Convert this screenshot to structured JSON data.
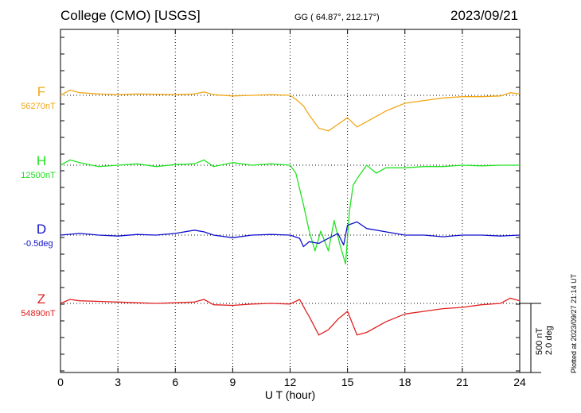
{
  "header": {
    "station": "College (CMO)  [USGS]",
    "coords": "GG ( 64.87°, 212.17°)",
    "date": "2023/09/21"
  },
  "footer": {
    "plotted": "Plotted at 2023/09/27 21:14 UT"
  },
  "chart_data": {
    "type": "line",
    "xlabel": "U T (hour)",
    "xlim": [
      0,
      24
    ],
    "x_ticks": [
      0,
      3,
      6,
      9,
      12,
      15,
      18,
      21,
      24
    ],
    "grid": true,
    "scale_bar": {
      "line1": "500 nT",
      "line2": "2.0 deg"
    },
    "series": [
      {
        "name": "F",
        "baseline_label": "56270nT",
        "color": "#f0a818",
        "unit": "nT",
        "points": [
          [
            0,
            0
          ],
          [
            0.5,
            40
          ],
          [
            1,
            20
          ],
          [
            2,
            10
          ],
          [
            3,
            5
          ],
          [
            4,
            10
          ],
          [
            5,
            8
          ],
          [
            6,
            5
          ],
          [
            7,
            10
          ],
          [
            7.5,
            25
          ],
          [
            8,
            5
          ],
          [
            9,
            -5
          ],
          [
            10,
            0
          ],
          [
            11,
            5
          ],
          [
            12,
            0
          ],
          [
            12.3,
            -30
          ],
          [
            12.7,
            -80
          ],
          [
            13,
            -150
          ],
          [
            13.5,
            -250
          ],
          [
            14,
            -270
          ],
          [
            14.5,
            -220
          ],
          [
            15,
            -170
          ],
          [
            15.5,
            -240
          ],
          [
            16,
            -200
          ],
          [
            16.5,
            -160
          ],
          [
            17,
            -120
          ],
          [
            17.5,
            -90
          ],
          [
            18,
            -60
          ],
          [
            19,
            -40
          ],
          [
            20,
            -20
          ],
          [
            21,
            -10
          ],
          [
            22,
            -10
          ],
          [
            23,
            -5
          ],
          [
            23.5,
            20
          ],
          [
            24,
            10
          ]
        ]
      },
      {
        "name": "H",
        "baseline_label": "12500nT",
        "color": "#22e222",
        "unit": "nT",
        "points": [
          [
            0,
            0
          ],
          [
            0.5,
            40
          ],
          [
            1,
            20
          ],
          [
            2,
            -10
          ],
          [
            3,
            0
          ],
          [
            4,
            10
          ],
          [
            5,
            -10
          ],
          [
            6,
            5
          ],
          [
            7,
            10
          ],
          [
            7.5,
            40
          ],
          [
            8,
            -10
          ],
          [
            9,
            20
          ],
          [
            10,
            0
          ],
          [
            11,
            10
          ],
          [
            12,
            0
          ],
          [
            12.3,
            -60
          ],
          [
            12.7,
            -300
          ],
          [
            13,
            -500
          ],
          [
            13.3,
            -650
          ],
          [
            13.6,
            -500
          ],
          [
            14,
            -650
          ],
          [
            14.3,
            -420
          ],
          [
            14.6,
            -600
          ],
          [
            14.9,
            -750
          ],
          [
            15.1,
            -350
          ],
          [
            15.3,
            -150
          ],
          [
            15.6,
            -80
          ],
          [
            16,
            0
          ],
          [
            16.5,
            -60
          ],
          [
            17,
            -20
          ],
          [
            18,
            -20
          ],
          [
            19,
            -10
          ],
          [
            20,
            -10
          ],
          [
            21,
            0
          ],
          [
            22,
            -5
          ],
          [
            23,
            0
          ],
          [
            24,
            0
          ]
        ]
      },
      {
        "name": "D",
        "baseline_label": "-0.5deg",
        "color": "#1010cc",
        "unit": "deg",
        "points": [
          [
            0,
            0
          ],
          [
            1,
            0.05
          ],
          [
            2,
            0
          ],
          [
            3,
            -0.03
          ],
          [
            4,
            0.02
          ],
          [
            5,
            0
          ],
          [
            6,
            0.05
          ],
          [
            7,
            0.15
          ],
          [
            7.5,
            0.1
          ],
          [
            8,
            0
          ],
          [
            9,
            -0.08
          ],
          [
            10,
            0
          ],
          [
            11,
            0.02
          ],
          [
            12,
            0
          ],
          [
            12.5,
            -0.1
          ],
          [
            12.7,
            -0.35
          ],
          [
            13,
            -0.2
          ],
          [
            13.5,
            -0.25
          ],
          [
            14,
            -0.1
          ],
          [
            14.5,
            0.05
          ],
          [
            14.8,
            -0.3
          ],
          [
            15,
            0.3
          ],
          [
            15.5,
            0.4
          ],
          [
            16,
            0.2
          ],
          [
            17,
            0.1
          ],
          [
            18,
            0
          ],
          [
            19,
            0
          ],
          [
            20,
            -0.05
          ],
          [
            21,
            0
          ],
          [
            22,
            0
          ],
          [
            23,
            -0.03
          ],
          [
            24,
            0
          ]
        ]
      },
      {
        "name": "Z",
        "baseline_label": "54890nT",
        "color": "#e02020",
        "unit": "nT",
        "points": [
          [
            0,
            0
          ],
          [
            0.5,
            30
          ],
          [
            1,
            20
          ],
          [
            2,
            15
          ],
          [
            3,
            10
          ],
          [
            4,
            5
          ],
          [
            5,
            0
          ],
          [
            6,
            5
          ],
          [
            7,
            10
          ],
          [
            7.5,
            30
          ],
          [
            8,
            -10
          ],
          [
            9,
            -15
          ],
          [
            10,
            -5
          ],
          [
            11,
            0
          ],
          [
            12,
            -5
          ],
          [
            12.5,
            30
          ],
          [
            12.8,
            -50
          ],
          [
            13,
            -100
          ],
          [
            13.5,
            -240
          ],
          [
            14,
            -200
          ],
          [
            14.5,
            -120
          ],
          [
            15,
            -60
          ],
          [
            15.5,
            -240
          ],
          [
            16,
            -220
          ],
          [
            17,
            -140
          ],
          [
            18,
            -80
          ],
          [
            19,
            -60
          ],
          [
            20,
            -40
          ],
          [
            21,
            -30
          ],
          [
            22,
            -10
          ],
          [
            23,
            0
          ],
          [
            23.5,
            40
          ],
          [
            24,
            20
          ]
        ]
      }
    ]
  }
}
